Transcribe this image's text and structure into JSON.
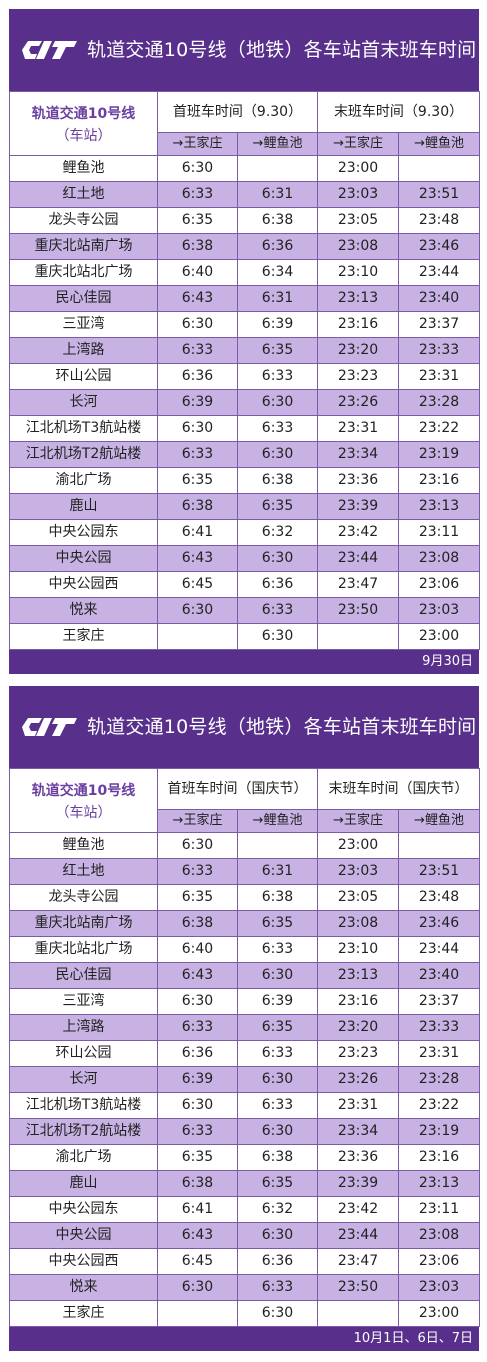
{
  "tables": [
    {
      "title": "轨道交通10号线（地铁）各车站首末班车时间",
      "station_header": "轨道交通10号线",
      "station_sub": "（车站）",
      "first_header": "首班车时间（9.30）",
      "last_header": "末班车时间（9.30）",
      "dir_a": "→王家庄",
      "dir_b": "→鲤鱼池",
      "footer": "9月30日",
      "rows": [
        [
          "鲤鱼池",
          "6:30",
          "",
          "23:00",
          ""
        ],
        [
          "红土地",
          "6:33",
          "6:31",
          "23:03",
          "23:51"
        ],
        [
          "龙头寺公园",
          "6:35",
          "6:38",
          "23:05",
          "23:48"
        ],
        [
          "重庆北站南广场",
          "6:38",
          "6:36",
          "23:08",
          "23:46"
        ],
        [
          "重庆北站北广场",
          "6:40",
          "6:34",
          "23:10",
          "23:44"
        ],
        [
          "民心佳园",
          "6:43",
          "6:31",
          "23:13",
          "23:40"
        ],
        [
          "三亚湾",
          "6:30",
          "6:39",
          "23:16",
          "23:37"
        ],
        [
          "上湾路",
          "6:33",
          "6:35",
          "23:20",
          "23:33"
        ],
        [
          "环山公园",
          "6:36",
          "6:33",
          "23:23",
          "23:31"
        ],
        [
          "长河",
          "6:39",
          "6:30",
          "23:26",
          "23:28"
        ],
        [
          "江北机场T3航站楼",
          "6:30",
          "6:33",
          "23:31",
          "23:22"
        ],
        [
          "江北机场T2航站楼",
          "6:33",
          "6:30",
          "23:34",
          "23:19"
        ],
        [
          "渝北广场",
          "6:35",
          "6:38",
          "23:36",
          "23:16"
        ],
        [
          "鹿山",
          "6:38",
          "6:35",
          "23:39",
          "23:13"
        ],
        [
          "中央公园东",
          "6:41",
          "6:32",
          "23:42",
          "23:11"
        ],
        [
          "中央公园",
          "6:43",
          "6:30",
          "23:44",
          "23:08"
        ],
        [
          "中央公园西",
          "6:45",
          "6:36",
          "23:47",
          "23:06"
        ],
        [
          "悦来",
          "6:30",
          "6:33",
          "23:50",
          "23:03"
        ],
        [
          "王家庄",
          "",
          "6:30",
          "",
          "23:00"
        ]
      ]
    },
    {
      "title": "轨道交通10号线（地铁）各车站首末班车时间",
      "station_header": "轨道交通10号线",
      "station_sub": "（车站）",
      "first_header": "首班车时间（国庆节）",
      "last_header": "末班车时间（国庆节）",
      "dir_a": "→王家庄",
      "dir_b": "→鲤鱼池",
      "footer": "10月1日、6日、7日",
      "rows": [
        [
          "鲤鱼池",
          "6:30",
          "",
          "23:00",
          ""
        ],
        [
          "红土地",
          "6:33",
          "6:31",
          "23:03",
          "23:51"
        ],
        [
          "龙头寺公园",
          "6:35",
          "6:38",
          "23:05",
          "23:48"
        ],
        [
          "重庆北站南广场",
          "6:38",
          "6:35",
          "23:08",
          "23:46"
        ],
        [
          "重庆北站北广场",
          "6:40",
          "6:33",
          "23:10",
          "23:44"
        ],
        [
          "民心佳园",
          "6:43",
          "6:30",
          "23:13",
          "23:40"
        ],
        [
          "三亚湾",
          "6:30",
          "6:39",
          "23:16",
          "23:37"
        ],
        [
          "上湾路",
          "6:33",
          "6:35",
          "23:20",
          "23:33"
        ],
        [
          "环山公园",
          "6:36",
          "6:33",
          "23:23",
          "23:31"
        ],
        [
          "长河",
          "6:39",
          "6:30",
          "23:26",
          "23:28"
        ],
        [
          "江北机场T3航站楼",
          "6:30",
          "6:33",
          "23:31",
          "23:22"
        ],
        [
          "江北机场T2航站楼",
          "6:33",
          "6:30",
          "23:34",
          "23:19"
        ],
        [
          "渝北广场",
          "6:35",
          "6:38",
          "23:36",
          "23:16"
        ],
        [
          "鹿山",
          "6:38",
          "6:35",
          "23:39",
          "23:13"
        ],
        [
          "中央公园东",
          "6:41",
          "6:32",
          "23:42",
          "23:11"
        ],
        [
          "中央公园",
          "6:43",
          "6:30",
          "23:44",
          "23:08"
        ],
        [
          "中央公园西",
          "6:45",
          "6:36",
          "23:47",
          "23:06"
        ],
        [
          "悦来",
          "6:30",
          "6:33",
          "23:50",
          "23:03"
        ],
        [
          "王家庄",
          "",
          "6:30",
          "",
          "23:00"
        ]
      ]
    }
  ],
  "colors": {
    "brand": "#58308c",
    "alt_row": "#c7b2e3",
    "header_text": "#6a3fa0"
  },
  "icons": {
    "logo": "rail-transit-logo"
  }
}
